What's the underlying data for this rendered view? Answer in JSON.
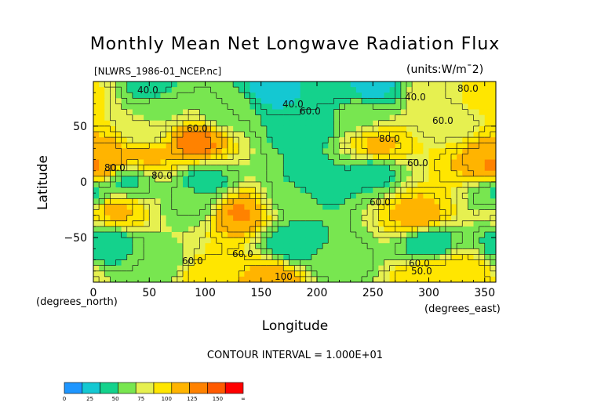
{
  "chart_data": {
    "type": "heatmap",
    "title": "Monthly Mean Net Longwave Radiation Flux",
    "subtitle_left": "[NLWRS_1986-01_NCEP.nc]",
    "units": "(units:W/m^2)",
    "xlabel": "Longitude",
    "ylabel": "Latitude",
    "x_unit_label": "(degrees_east)",
    "y_unit_label": "(degrees_north)",
    "xlim": [
      0,
      360
    ],
    "ylim": [
      -90,
      90
    ],
    "x_ticks": [
      0,
      50,
      100,
      150,
      200,
      250,
      300,
      350
    ],
    "y_ticks": [
      50,
      0,
      -50
    ],
    "y_tick_labels": [
      "50",
      "0",
      "−50"
    ],
    "contour_interval_text": "CONTOUR INTERVAL = 1.000E+01",
    "contour_labels": [
      "40.0",
      "40.0",
      "40.0",
      "60.0",
      "60.0",
      "80.0",
      "80.0",
      "80.0",
      "60.0",
      "60.0",
      "60.0",
      "60.0",
      "60.0",
      "60.0",
      "50.0",
      "80.0",
      "100"
    ],
    "colorbar": {
      "ticks": [
        "0",
        "25",
        "50",
        "75",
        "100",
        "125",
        "150",
        "∞"
      ],
      "colors": [
        "#1e96ff",
        "#14c8d2",
        "#14d28c",
        "#78e650",
        "#e6f050",
        "#ffe600",
        "#ffb400",
        "#ff8200",
        "#ff5a00",
        "#ff0000"
      ]
    },
    "regions": [
      {
        "lon": 0,
        "lat": 15,
        "value": 120
      },
      {
        "lon": 360,
        "lat": 15,
        "value": 120
      },
      {
        "lon": 12,
        "lat": 22,
        "value": 115
      },
      {
        "lon": 50,
        "lat": 25,
        "value": 105
      },
      {
        "lon": 90,
        "lat": 35,
        "value": 125
      },
      {
        "lon": 130,
        "lat": -28,
        "value": 120
      },
      {
        "lon": 20,
        "lat": -25,
        "value": 105
      },
      {
        "lon": 290,
        "lat": -30,
        "value": 110
      },
      {
        "lon": 255,
        "lat": 32,
        "value": 105
      },
      {
        "lon": 322,
        "lat": 55,
        "value": 75
      },
      {
        "lon": 305,
        "lat": 80,
        "value": 80
      },
      {
        "lon": 45,
        "lat": 45,
        "value": 70
      },
      {
        "lon": 190,
        "lat": 50,
        "value": 40
      },
      {
        "lon": 50,
        "lat": 85,
        "value": 45
      },
      {
        "lon": 160,
        "lat": 82,
        "value": 30
      },
      {
        "lon": 210,
        "lat": 85,
        "value": 35
      },
      {
        "lon": 250,
        "lat": 85,
        "value": 30
      },
      {
        "lon": 200,
        "lat": 0,
        "value": 40
      },
      {
        "lon": 100,
        "lat": 0,
        "value": 45
      },
      {
        "lon": 30,
        "lat": 0,
        "value": 48
      },
      {
        "lon": 250,
        "lat": 10,
        "value": 45
      },
      {
        "lon": 0,
        "lat": -10,
        "value": 50
      },
      {
        "lon": 180,
        "lat": -15,
        "value": 55
      },
      {
        "lon": 90,
        "lat": -20,
        "value": 58
      },
      {
        "lon": 10,
        "lat": -55,
        "value": 40
      },
      {
        "lon": 180,
        "lat": -55,
        "value": 40
      },
      {
        "lon": 300,
        "lat": -55,
        "value": 40
      },
      {
        "lon": 60,
        "lat": -75,
        "value": 60
      },
      {
        "lon": 220,
        "lat": -70,
        "value": 55
      },
      {
        "lon": 100,
        "lat": -85,
        "value": 95
      },
      {
        "lon": 160,
        "lat": -88,
        "value": 110
      },
      {
        "lon": 300,
        "lat": -85,
        "value": 100
      },
      {
        "lon": 330,
        "lat": -80,
        "value": 95
      },
      {
        "lon": 60,
        "lat": 65,
        "value": 65
      },
      {
        "lon": 120,
        "lat": 65,
        "value": 60
      },
      {
        "lon": 240,
        "lat": 60,
        "value": 65
      },
      {
        "lon": 350,
        "lat": 75,
        "value": 90
      }
    ]
  }
}
